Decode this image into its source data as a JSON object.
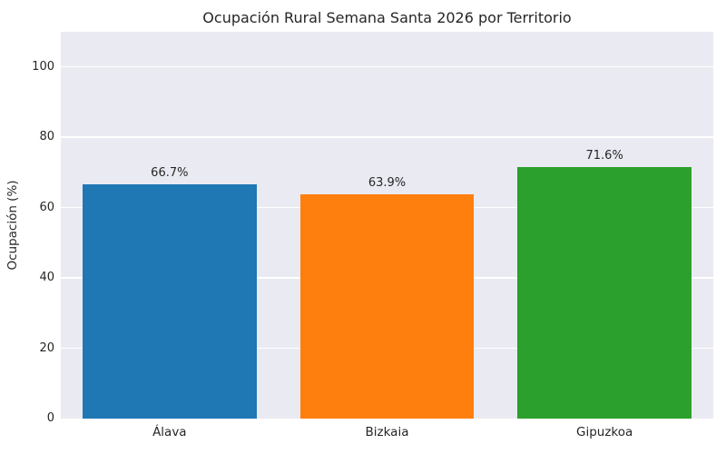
{
  "figure": {
    "background": "#ffffff",
    "plot_background": "#eaeaf2",
    "grid_color": "#ffffff",
    "text_color": "#262626"
  },
  "chart_data": {
    "type": "bar",
    "title": "Ocupación Rural Semana Santa 2026 por Territorio",
    "categories": [
      "Álava",
      "Bizkaia",
      "Gipuzkoa"
    ],
    "values": [
      66.7,
      63.9,
      71.6
    ],
    "value_labels": [
      "66.7%",
      "63.9%",
      "71.6%"
    ],
    "bar_colors": [
      "#1f77b4",
      "#ff7f0e",
      "#2ca02c"
    ],
    "xlabel": "",
    "ylabel": "Ocupación (%)",
    "ylim": [
      0,
      110
    ],
    "yticks": [
      0,
      20,
      40,
      60,
      80,
      100
    ],
    "bar_width_fraction": 0.8,
    "grid": true,
    "legend": null
  }
}
